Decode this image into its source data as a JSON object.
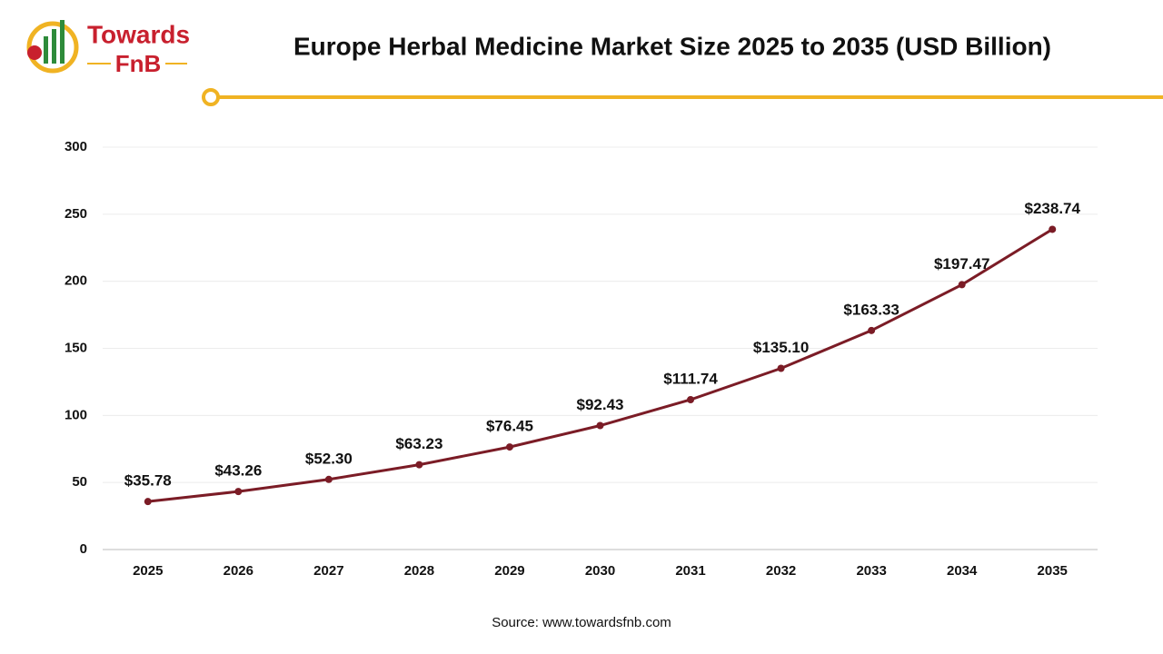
{
  "brand": {
    "line1": "Towards",
    "line2": "FnB"
  },
  "chart_data": {
    "type": "line",
    "title": "Europe Herbal Medicine Market Size 2025 to 2035 (USD Billion)",
    "categories": [
      "2025",
      "2026",
      "2027",
      "2028",
      "2029",
      "2030",
      "2031",
      "2032",
      "2033",
      "2034",
      "2035"
    ],
    "values": [
      35.78,
      43.26,
      52.3,
      63.23,
      76.45,
      92.43,
      111.74,
      135.1,
      163.33,
      197.47,
      238.74
    ],
    "value_labels": [
      "$35.78",
      "$43.26",
      "$52.30",
      "$63.23",
      "$76.45",
      "$92.43",
      "$111.74",
      "$135.10",
      "$163.33",
      "$197.47",
      "$238.74"
    ],
    "color": "#7b1c26",
    "ylim": [
      0,
      300
    ],
    "yticks": [
      0,
      50,
      100,
      150,
      200,
      250,
      300
    ],
    "grid": true,
    "source": "Source: www.towardsfnb.com"
  }
}
